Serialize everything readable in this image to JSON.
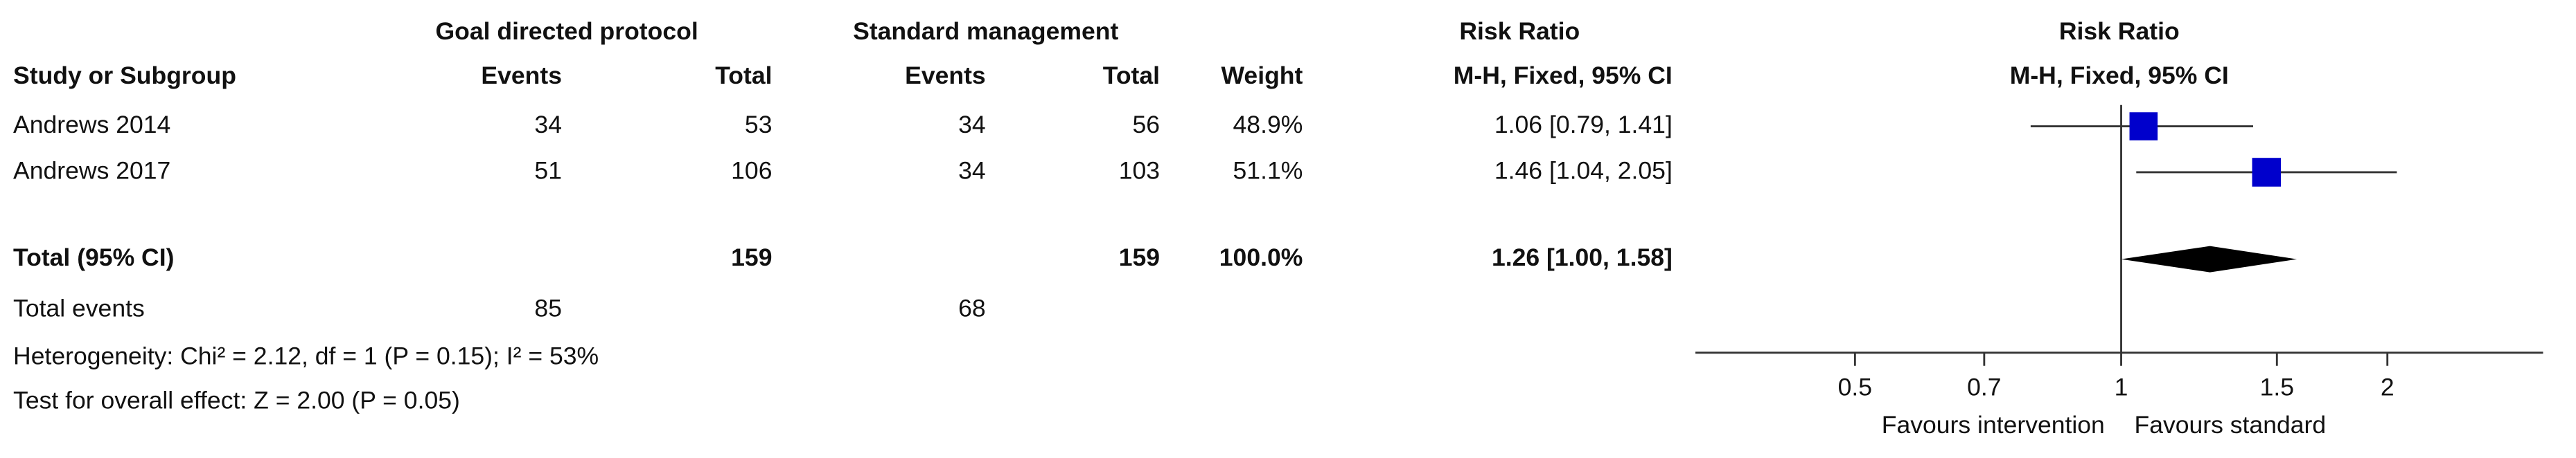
{
  "chart_data": {
    "type": "forest",
    "group_headers": [
      "Goal directed protocol",
      "Standard management",
      "Risk Ratio"
    ],
    "columns": [
      "Study or Subgroup",
      "Events",
      "Total",
      "Events",
      "Total",
      "Weight",
      "M-H, Fixed, 95% CI"
    ],
    "plot_header": [
      "Risk Ratio",
      "M-H, Fixed, 95% CI"
    ],
    "studies": [
      {
        "name": "Andrews 2014",
        "events_1": 34,
        "total_1": 53,
        "events_2": 34,
        "total_2": 56,
        "weight": 48.9,
        "weight_label": "48.9%",
        "estimate": 1.06,
        "ci": [
          0.79,
          1.41
        ],
        "ci_label": "1.06 [0.79, 1.41]"
      },
      {
        "name": "Andrews 2017",
        "events_1": 51,
        "total_1": 106,
        "events_2": 34,
        "total_2": 103,
        "weight": 51.1,
        "weight_label": "51.1%",
        "estimate": 1.46,
        "ci": [
          1.04,
          2.05
        ],
        "ci_label": "1.46 [1.04, 2.05]"
      }
    ],
    "total": {
      "name": "Total (95% CI)",
      "total_1": 159,
      "total_2": 159,
      "weight": 100.0,
      "weight_label": "100.0%",
      "estimate": 1.26,
      "ci": [
        1.0,
        1.58
      ],
      "ci_label": "1.26 [1.00, 1.58]"
    },
    "total_events": {
      "name": "Total events",
      "events_1": 85,
      "events_2": 68
    },
    "notes": [
      "Heterogeneity: Chi² = 2.12, df = 1 (P = 0.15); I² = 53%",
      "Test for overall effect: Z = 2.00 (P = 0.05)"
    ],
    "xscale": "log",
    "xlim": [
      0.33,
      3
    ],
    "xticks": [
      0.5,
      0.7,
      1,
      1.5,
      2
    ],
    "ref_line": 1,
    "x_labels": [
      "Favours intervention",
      "Favours standard"
    ],
    "square_color": "#0000cc",
    "diamond_color": "#000000"
  }
}
